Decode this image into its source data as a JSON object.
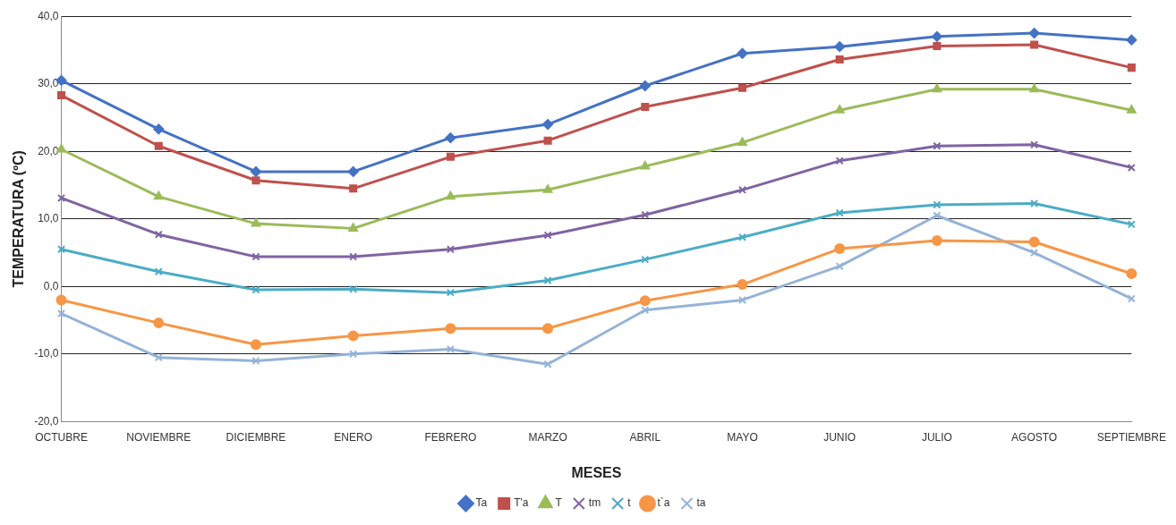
{
  "chart_data": {
    "type": "line",
    "xlabel": "MESES",
    "ylabel": "TEMPERATURA (ºC)",
    "categories": [
      "OCTUBRE",
      "NOVIEMBRE",
      "DICIEMBRE",
      "ENERO",
      "FEBRERO",
      "MARZO",
      "ABRIL",
      "MAYO",
      "JUNIO",
      "JULIO",
      "AGOSTO",
      "SEPTIEMBRE"
    ],
    "series": [
      {
        "name": "Ta",
        "color": "#4472c4",
        "marker": "diamond",
        "values": [
          30.5,
          23.3,
          17.0,
          17.0,
          22.0,
          24.0,
          29.7,
          34.5,
          35.5,
          37.0,
          37.5,
          36.5
        ]
      },
      {
        "name": "T'a",
        "color": "#c0504d",
        "marker": "square",
        "values": [
          28.3,
          20.8,
          15.7,
          14.5,
          19.2,
          21.6,
          26.6,
          29.4,
          33.6,
          35.6,
          35.8,
          32.4
        ]
      },
      {
        "name": "T",
        "color": "#9bbb59",
        "marker": "triangle",
        "values": [
          20.3,
          13.3,
          9.3,
          8.6,
          13.3,
          14.3,
          17.8,
          21.3,
          26.1,
          29.2,
          29.2,
          26.1
        ]
      },
      {
        "name": "tm",
        "color": "#8064a2",
        "marker": "cross",
        "values": [
          13.1,
          7.7,
          4.4,
          4.4,
          5.5,
          7.6,
          10.6,
          14.3,
          18.6,
          20.8,
          21.0,
          17.6
        ]
      },
      {
        "name": "t",
        "color": "#4bacc6",
        "marker": "cross",
        "values": [
          5.5,
          2.2,
          -0.5,
          -0.4,
          -0.9,
          0.9,
          4.0,
          7.3,
          10.9,
          12.1,
          12.3,
          9.2
        ]
      },
      {
        "name": "t`a",
        "color": "#f79646",
        "marker": "circle",
        "values": [
          -2.0,
          -5.4,
          -8.6,
          -7.3,
          -6.2,
          -6.2,
          -2.1,
          0.3,
          5.6,
          6.8,
          6.6,
          1.9
        ]
      },
      {
        "name": "ta",
        "color": "#95b3d7",
        "marker": "cross",
        "values": [
          -4.0,
          -10.5,
          -11.0,
          -10.0,
          -9.3,
          -11.5,
          -3.5,
          -2.0,
          3.0,
          10.5,
          5.0,
          -1.8
        ]
      }
    ],
    "ylim": [
      -20,
      40
    ],
    "yticks": [
      {
        "value": -20,
        "label": "-20,0"
      },
      {
        "value": -10,
        "label": "-10,0"
      },
      {
        "value": 0,
        "label": "0,0"
      },
      {
        "value": 10,
        "label": "10,0"
      },
      {
        "value": 20,
        "label": "20,0"
      },
      {
        "value": 30,
        "label": "30,0"
      },
      {
        "value": 40,
        "label": "40,0"
      }
    ],
    "grid": "y",
    "legend": "bottom"
  }
}
